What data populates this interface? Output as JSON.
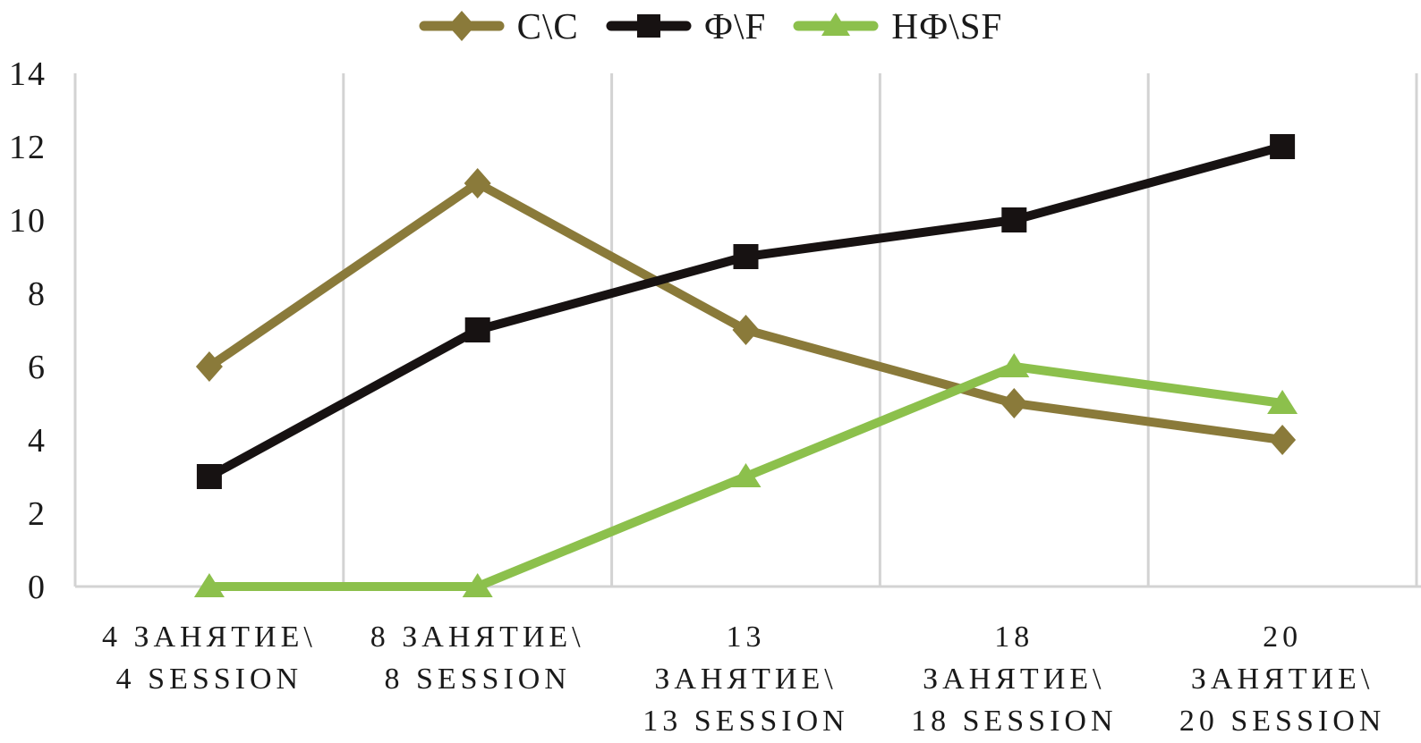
{
  "chart_data": {
    "type": "line",
    "title": "",
    "xlabel": "",
    "ylabel": "",
    "ylim": [
      0,
      14
    ],
    "y_ticks": [
      0,
      2,
      4,
      6,
      8,
      10,
      12,
      14
    ],
    "grid": "vertical-only",
    "legend_position": "top-center",
    "categories": [
      [
        "4 ЗАНЯТИЕ\\",
        "4 SESSION"
      ],
      [
        "8 ЗАНЯТИЕ\\",
        "8 SESSION"
      ],
      [
        "13",
        "ЗАНЯТИЕ\\",
        "13 SESSION"
      ],
      [
        "18",
        "ЗАНЯТИЕ\\",
        "18 SESSION"
      ],
      [
        "20",
        "ЗАНЯТИЕ\\",
        "20 SESSION"
      ]
    ],
    "series": [
      {
        "id": "cc",
        "name": "С\\C",
        "marker": "diamond",
        "color": "#8a7a3a",
        "values": [
          6,
          11,
          7,
          5,
          4
        ]
      },
      {
        "id": "ff",
        "name": "Ф\\F",
        "marker": "square",
        "color": "#171212",
        "values": [
          3,
          7,
          9,
          10,
          12
        ]
      },
      {
        "id": "nfsf",
        "name": "НФ\\SF",
        "marker": "triangle",
        "color": "#8cc04c",
        "values": [
          0,
          0,
          3,
          6,
          5
        ]
      }
    ],
    "colors": {
      "gridline": "#d3d3d3",
      "axis_line": "#d3d3d3",
      "text": "#1a1a1a",
      "background": "#ffffff"
    }
  }
}
